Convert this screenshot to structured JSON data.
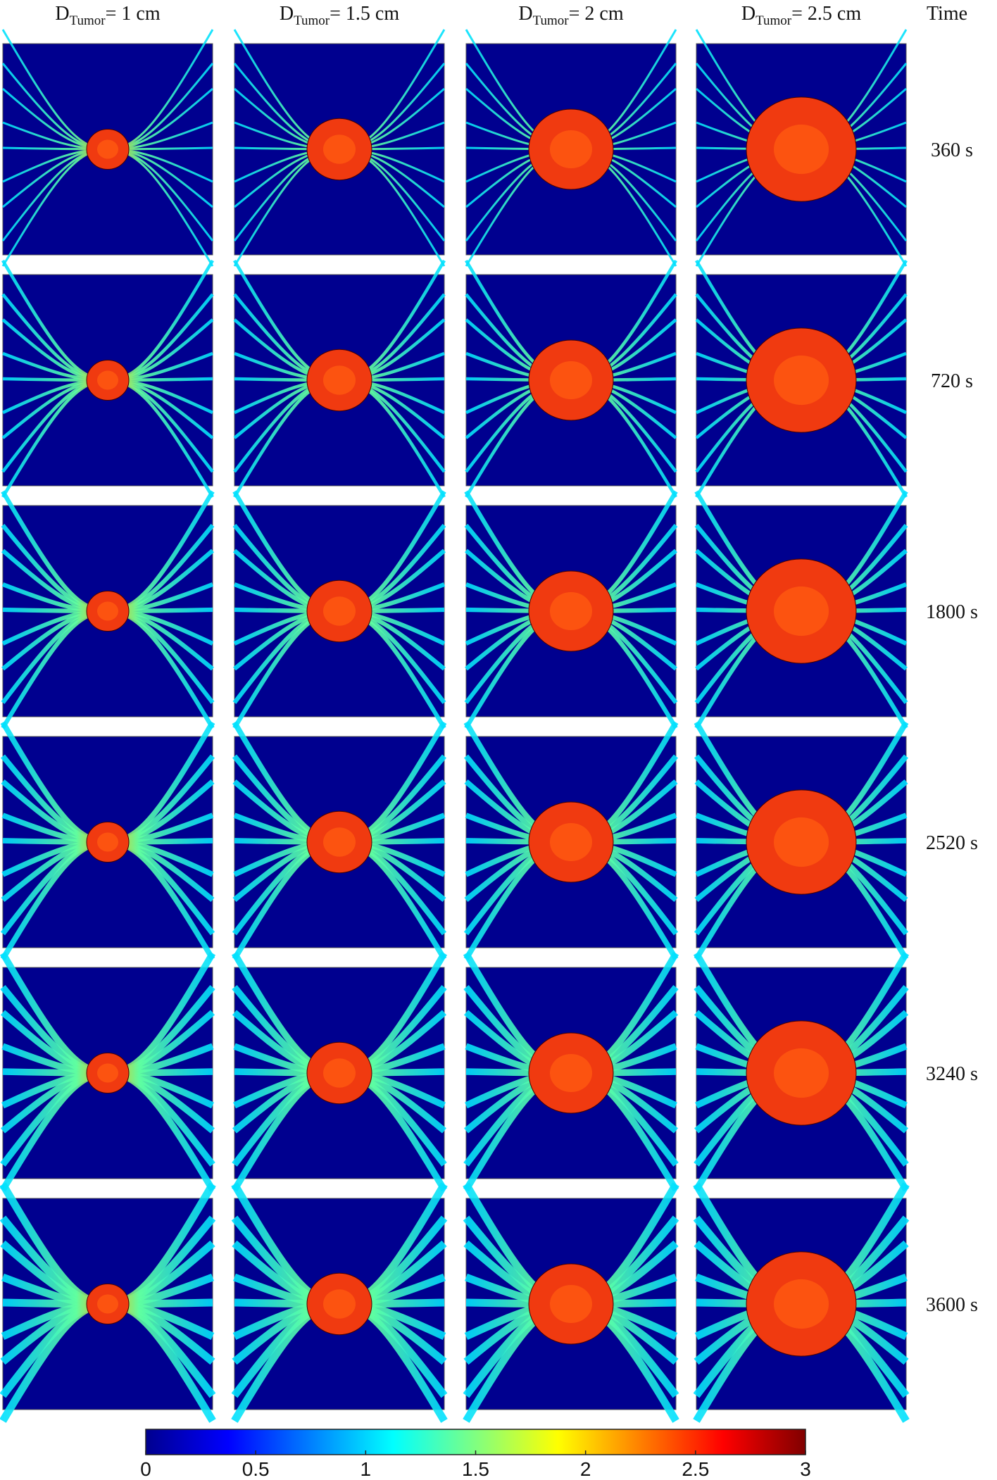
{
  "columns": [
    {
      "symbol": "D",
      "subscript": "Tumor",
      "text": "= 1 cm"
    },
    {
      "symbol": "D",
      "subscript": "Tumor",
      "text": "= 1.5 cm"
    },
    {
      "symbol": "D",
      "subscript": "Tumor",
      "text": "= 2 cm"
    },
    {
      "symbol": "D",
      "subscript": "Tumor",
      "text": "= 2.5 cm"
    }
  ],
  "row_header": "Time",
  "rows": [
    "360 s",
    "720 s",
    "1800 s",
    "2520 s",
    "3240 s",
    "3600 s"
  ],
  "colorbar": {
    "lim": [
      0,
      3
    ],
    "ticks": [
      0,
      0.5,
      1,
      1.5,
      2,
      2.5,
      3
    ]
  }
}
